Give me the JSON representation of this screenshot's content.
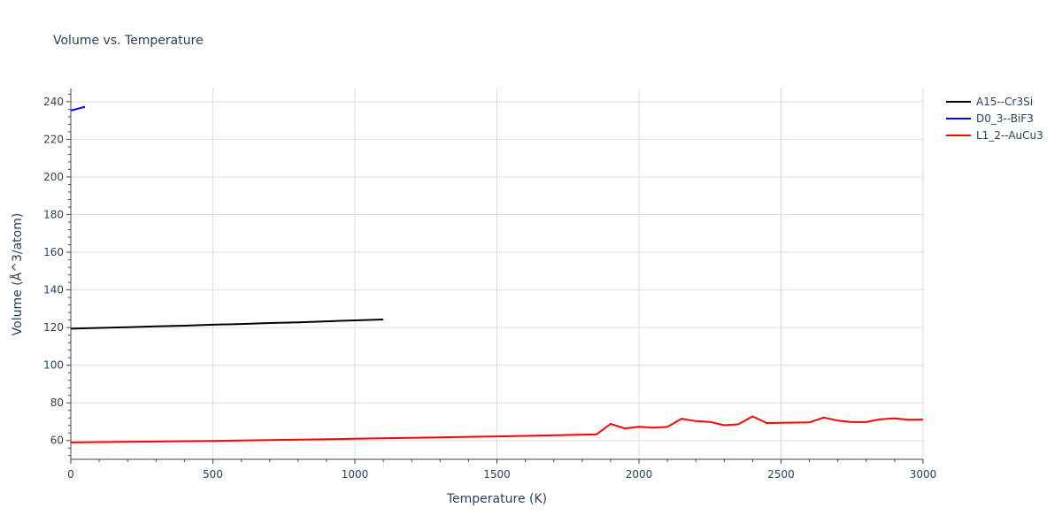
{
  "chart_data": {
    "type": "line",
    "title": "Volume vs. Temperature",
    "xlabel": "Temperature (K)",
    "ylabel": "Volume (Å^3/atom)",
    "xlim": [
      0,
      3000
    ],
    "ylim": [
      50,
      247
    ],
    "grid": true,
    "legend_position": "right",
    "x_ticks": [
      0,
      500,
      1000,
      1500,
      2000,
      2500,
      3000
    ],
    "x_tick_labels": [
      "0",
      "500",
      "1000",
      "1500",
      "2000",
      "2500",
      "3000"
    ],
    "y_ticks": [
      60,
      80,
      100,
      120,
      140,
      160,
      180,
      200,
      220,
      240
    ],
    "y_tick_labels": [
      "60",
      "80",
      "100",
      "120",
      "140",
      "160",
      "180",
      "200",
      "220",
      "240"
    ],
    "series": [
      {
        "name": "A15--Cr3Si",
        "color": "#000000",
        "x": [
          0,
          100,
          200,
          300,
          400,
          500,
          600,
          700,
          800,
          900,
          1000,
          1100
        ],
        "y": [
          119.4,
          119.8,
          120.2,
          120.6,
          121.0,
          121.5,
          121.9,
          122.4,
          122.8,
          123.3,
          123.8,
          124.3
        ]
      },
      {
        "name": "D0_3--BiF3",
        "color": "#0000ff",
        "x": [
          0,
          25,
          50
        ],
        "y": [
          235.3,
          236.3,
          237.3
        ]
      },
      {
        "name": "L1_2--AuCu3",
        "color": "#ff0000",
        "x": [
          0,
          500,
          1000,
          1500,
          1850,
          1900,
          1950,
          2000,
          2050,
          2100,
          2150,
          2200,
          2250,
          2300,
          2350,
          2400,
          2450,
          2500,
          2550,
          2600,
          2650,
          2700,
          2750,
          2800,
          2850,
          2900,
          2950,
          3000
        ],
        "y": [
          59.0,
          59.8,
          60.9,
          62.2,
          63.2,
          68.8,
          66.4,
          67.3,
          66.8,
          67.2,
          71.6,
          70.3,
          69.9,
          68.1,
          68.6,
          72.8,
          69.3,
          69.4,
          69.5,
          69.6,
          72.2,
          70.6,
          69.8,
          69.8,
          71.3,
          71.7,
          71.0,
          71.1
        ]
      }
    ]
  }
}
